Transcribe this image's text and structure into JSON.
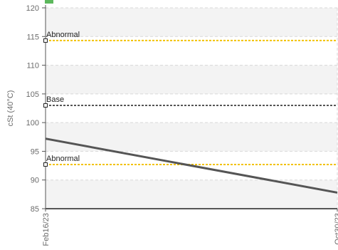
{
  "chart_data": {
    "type": "line",
    "title": "",
    "xlabel": "",
    "ylabel": "cSt (40°C)",
    "ylim": [
      85,
      120
    ],
    "yticks": [
      85,
      90,
      95,
      100,
      105,
      110,
      115,
      120
    ],
    "x_tick_labels": [
      "Feb16/23",
      "Oct30/23"
    ],
    "grid": true,
    "series": [
      {
        "x": [
          "Feb16/23",
          "Oct30/23"
        ],
        "values": [
          97.2,
          87.8
        ],
        "color": "#555555"
      }
    ],
    "reference_lines": [
      {
        "label": "Abnormal",
        "value": 114.3,
        "color": "#f2c200"
      },
      {
        "label": "Base",
        "value": 103.0,
        "color": "#555555"
      },
      {
        "label": "Abnormal",
        "value": 92.7,
        "color": "#f2c200"
      }
    ],
    "band_color": "#f3f3f3",
    "legend_swatch_color": "#5cb85c"
  }
}
